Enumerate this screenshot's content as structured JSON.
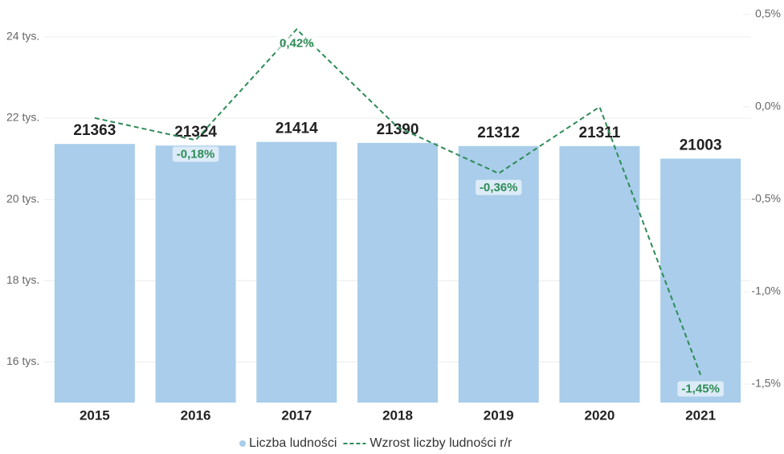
{
  "chart_data": {
    "type": "bar-line",
    "categories": [
      "2015",
      "2016",
      "2017",
      "2018",
      "2019",
      "2020",
      "2021"
    ],
    "series": [
      {
        "name": "Liczba ludności",
        "type": "bar",
        "color": "#a9cdea",
        "values": [
          21363,
          21324,
          21414,
          21390,
          21312,
          21311,
          21003
        ]
      },
      {
        "name": "Wzrost liczby ludności r/r",
        "type": "line",
        "axis": "y2",
        "color": "#2e8b57",
        "dashed": true,
        "values": [
          -0.06,
          -0.18,
          0.42,
          -0.11,
          -0.36,
          0.0,
          -1.45
        ],
        "value_labels": [
          null,
          "-0,18%",
          "0,42%",
          null,
          "-0,36%",
          null,
          "-1,45%"
        ]
      }
    ],
    "ylim": [
      15000,
      24550
    ],
    "yticks": [
      {
        "value": 16000,
        "label": "16 tys."
      },
      {
        "value": 18000,
        "label": "18 tys."
      },
      {
        "value": 20000,
        "label": "20 tys."
      },
      {
        "value": 22000,
        "label": "22 tys."
      },
      {
        "value": 24000,
        "label": "24 tys."
      }
    ],
    "y2lim": [
      -1.6,
      0.5
    ],
    "y2ticks": [
      {
        "value": 0.5,
        "label": "0,5%"
      },
      {
        "value": 0.0,
        "label": "0,0%"
      },
      {
        "value": -0.5,
        "label": "-0,5%"
      },
      {
        "value": -1.0,
        "label": "-1,0%"
      },
      {
        "value": -1.5,
        "label": "-1,5%"
      }
    ],
    "grid": true,
    "legend": "bottom"
  }
}
